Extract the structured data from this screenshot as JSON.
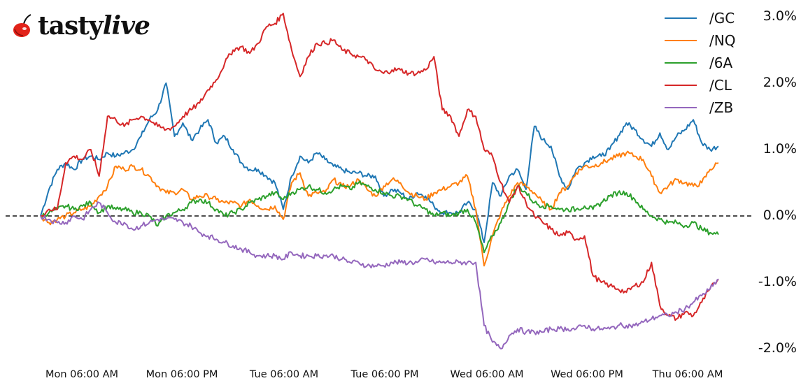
{
  "brand": {
    "logo_part1": "tasty",
    "logo_part2": "live",
    "cherry_color": "#e2231a"
  },
  "legend": {
    "items": [
      {
        "label": "/GC",
        "color": "#1f77b4"
      },
      {
        "label": "/NQ",
        "color": "#ff7f0e"
      },
      {
        "label": "/6A",
        "color": "#2ca02c"
      },
      {
        "label": "/CL",
        "color": "#d62728"
      },
      {
        "label": "/ZB",
        "color": "#9467bd"
      }
    ]
  },
  "axes": {
    "y_ticks": [
      "3.0%",
      "2.0%",
      "1.0%",
      "0.0%",
      "-1.0%",
      "-2.0%"
    ],
    "x_ticks": [
      "Mon 06:00 AM",
      "Mon 06:00 PM",
      "Tue 06:00 AM",
      "Tue 06:00 PM",
      "Wed 06:00 AM",
      "Wed 06:00 PM",
      "Thu 06:00 AM"
    ]
  },
  "chart_data": {
    "type": "line",
    "title": "",
    "xlabel": "",
    "ylabel": "",
    "x_unit": "hours from series start (Mon ~01:00 AM)",
    "x_ticks": [
      "Mon 06:00 AM",
      "Mon 06:00 PM",
      "Tue 06:00 AM",
      "Tue 06:00 PM",
      "Wed 06:00 AM",
      "Wed 06:00 PM",
      "Thu 06:00 AM"
    ],
    "x_tick_hours": [
      5,
      17,
      29,
      41,
      53,
      65,
      77
    ],
    "ylim": [
      -2.1,
      3.0
    ],
    "y_ticks": [
      3.0,
      2.0,
      1.0,
      0.0,
      -1.0,
      -2.0
    ],
    "y_axis_position": "right",
    "y_format": "percent",
    "reference_line": {
      "y": 0.0,
      "style": "dashed",
      "color": "#000000"
    },
    "grid": false,
    "legend_position": "upper right",
    "x": [
      0,
      1,
      2,
      3,
      4,
      5,
      6,
      7,
      8,
      9,
      10,
      11,
      12,
      13,
      14,
      15,
      16,
      17,
      18,
      19,
      20,
      21,
      22,
      23,
      24,
      25,
      26,
      27,
      28,
      29,
      30,
      31,
      32,
      33,
      34,
      35,
      36,
      37,
      38,
      39,
      40,
      41,
      42,
      43,
      44,
      45,
      46,
      47,
      48,
      49,
      50,
      51,
      52,
      53,
      54,
      55,
      56,
      57,
      58,
      59,
      60,
      61,
      62,
      63,
      64,
      65,
      66,
      67,
      68,
      69,
      70,
      71,
      72,
      73,
      74,
      75,
      76,
      77,
      78,
      79,
      80,
      81
    ],
    "series": [
      {
        "name": "/GC",
        "color": "#1f77b4",
        "values": [
          0.0,
          0.4,
          0.7,
          0.8,
          0.7,
          0.85,
          0.9,
          0.85,
          0.95,
          0.9,
          0.95,
          1.0,
          1.2,
          1.45,
          1.6,
          2.0,
          1.2,
          1.4,
          1.15,
          1.3,
          1.45,
          1.1,
          1.2,
          1.0,
          0.8,
          0.7,
          0.7,
          0.6,
          0.5,
          0.1,
          0.6,
          0.9,
          0.8,
          0.95,
          0.85,
          0.75,
          0.7,
          0.65,
          0.65,
          0.6,
          0.6,
          0.3,
          0.4,
          0.35,
          0.25,
          0.35,
          0.3,
          0.15,
          0.05,
          0.05,
          0.05,
          0.2,
          0.1,
          -0.4,
          0.5,
          0.3,
          0.6,
          0.7,
          0.4,
          1.35,
          1.15,
          1.05,
          0.6,
          0.4,
          0.7,
          0.8,
          0.9,
          0.9,
          1.0,
          1.2,
          1.4,
          1.3,
          1.15,
          1.05,
          1.25,
          1.0,
          1.2,
          1.3,
          1.45,
          1.1,
          1.0,
          1.05
        ]
      },
      {
        "name": "/NQ",
        "color": "#ff7f0e",
        "values": [
          0.0,
          -0.1,
          -0.05,
          0.0,
          0.05,
          0.1,
          0.15,
          0.3,
          0.45,
          0.75,
          0.7,
          0.75,
          0.7,
          0.6,
          0.45,
          0.35,
          0.35,
          0.4,
          0.25,
          0.3,
          0.3,
          0.25,
          0.2,
          0.2,
          0.15,
          0.25,
          0.15,
          0.1,
          0.15,
          -0.05,
          0.5,
          0.65,
          0.3,
          0.35,
          0.35,
          0.55,
          0.45,
          0.45,
          0.55,
          0.4,
          0.3,
          0.45,
          0.55,
          0.5,
          0.35,
          0.3,
          0.25,
          0.35,
          0.4,
          0.45,
          0.5,
          0.6,
          0.1,
          -0.75,
          -0.3,
          0.05,
          0.3,
          0.5,
          0.45,
          0.35,
          0.2,
          0.1,
          0.35,
          0.45,
          0.65,
          0.75,
          0.75,
          0.8,
          0.85,
          0.9,
          0.95,
          0.9,
          0.85,
          0.6,
          0.35,
          0.45,
          0.55,
          0.5,
          0.45,
          0.5,
          0.7,
          0.8
        ]
      },
      {
        "name": "/6A",
        "color": "#2ca02c",
        "values": [
          0.0,
          0.05,
          0.1,
          0.15,
          0.1,
          0.15,
          0.2,
          0.05,
          0.15,
          0.1,
          0.1,
          0.05,
          0.05,
          0.0,
          -0.15,
          0.0,
          0.05,
          0.1,
          0.2,
          0.25,
          0.2,
          0.1,
          0.0,
          0.05,
          0.1,
          0.2,
          0.25,
          0.3,
          0.35,
          0.25,
          0.35,
          0.4,
          0.45,
          0.4,
          0.35,
          0.4,
          0.45,
          0.4,
          0.5,
          0.45,
          0.4,
          0.35,
          0.3,
          0.3,
          0.25,
          0.15,
          0.1,
          0.0,
          0.05,
          0.0,
          0.05,
          0.1,
          -0.1,
          -0.55,
          -0.3,
          -0.1,
          0.2,
          0.45,
          0.35,
          0.2,
          0.15,
          0.15,
          0.1,
          0.1,
          0.1,
          0.15,
          0.1,
          0.2,
          0.3,
          0.35,
          0.35,
          0.25,
          0.1,
          0.0,
          -0.05,
          -0.1,
          -0.1,
          -0.15,
          -0.1,
          -0.2,
          -0.25,
          -0.28
        ]
      },
      {
        "name": "/CL",
        "color": "#d62728",
        "values": [
          0.0,
          0.1,
          0.1,
          0.8,
          0.9,
          0.85,
          1.0,
          0.6,
          1.5,
          1.45,
          1.35,
          1.45,
          1.5,
          1.45,
          1.35,
          1.3,
          1.35,
          1.5,
          1.6,
          1.7,
          1.9,
          2.05,
          2.3,
          2.5,
          2.55,
          2.45,
          2.6,
          2.85,
          2.9,
          3.05,
          2.5,
          2.1,
          2.4,
          2.6,
          2.6,
          2.65,
          2.5,
          2.45,
          2.4,
          2.35,
          2.2,
          2.15,
          2.2,
          2.2,
          2.15,
          2.15,
          2.2,
          2.4,
          1.6,
          1.5,
          1.2,
          1.6,
          1.5,
          1.0,
          0.9,
          0.5,
          0.2,
          0.45,
          0.2,
          0.0,
          -0.1,
          -0.2,
          -0.3,
          -0.25,
          -0.35,
          -0.3,
          -0.9,
          -1.0,
          -1.05,
          -1.1,
          -1.15,
          -1.05,
          -1.0,
          -0.7,
          -1.35,
          -1.5,
          -1.55,
          -1.45,
          -1.5,
          -1.3,
          -1.1,
          -0.95
        ]
      },
      {
        "name": "/ZB",
        "color": "#9467bd",
        "values": [
          0.0,
          -0.05,
          -0.1,
          -0.1,
          0.0,
          -0.05,
          0.1,
          0.2,
          0.05,
          -0.1,
          -0.1,
          -0.2,
          -0.15,
          -0.1,
          -0.05,
          -0.05,
          -0.05,
          -0.1,
          -0.15,
          -0.25,
          -0.3,
          -0.35,
          -0.4,
          -0.45,
          -0.5,
          -0.55,
          -0.6,
          -0.6,
          -0.6,
          -0.65,
          -0.55,
          -0.6,
          -0.6,
          -0.6,
          -0.6,
          -0.6,
          -0.65,
          -0.7,
          -0.7,
          -0.75,
          -0.75,
          -0.75,
          -0.7,
          -0.7,
          -0.7,
          -0.7,
          -0.65,
          -0.7,
          -0.7,
          -0.7,
          -0.7,
          -0.7,
          -0.7,
          -1.65,
          -1.9,
          -2.0,
          -1.8,
          -1.7,
          -1.75,
          -1.75,
          -1.75,
          -1.7,
          -1.7,
          -1.7,
          -1.7,
          -1.65,
          -1.7,
          -1.7,
          -1.7,
          -1.65,
          -1.65,
          -1.65,
          -1.6,
          -1.55,
          -1.5,
          -1.5,
          -1.45,
          -1.4,
          -1.3,
          -1.2,
          -1.1,
          -0.95
        ]
      }
    ]
  }
}
